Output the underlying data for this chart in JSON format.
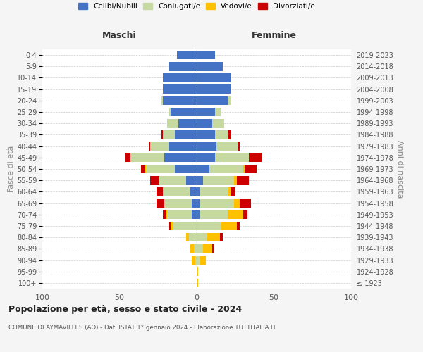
{
  "age_groups": [
    "100+",
    "95-99",
    "90-94",
    "85-89",
    "80-84",
    "75-79",
    "70-74",
    "65-69",
    "60-64",
    "55-59",
    "50-54",
    "45-49",
    "40-44",
    "35-39",
    "30-34",
    "25-29",
    "20-24",
    "15-19",
    "10-14",
    "5-9",
    "0-4"
  ],
  "birth_years": [
    "≤ 1923",
    "1924-1928",
    "1929-1933",
    "1934-1938",
    "1939-1943",
    "1944-1948",
    "1949-1953",
    "1954-1958",
    "1959-1963",
    "1964-1968",
    "1969-1973",
    "1974-1978",
    "1979-1983",
    "1984-1988",
    "1989-1993",
    "1994-1998",
    "1999-2003",
    "2004-2008",
    "2009-2013",
    "2014-2018",
    "2019-2023"
  ],
  "males": {
    "celibi": [
      0,
      0,
      0,
      0,
      0,
      0,
      3,
      3,
      4,
      7,
      14,
      21,
      18,
      14,
      12,
      17,
      22,
      22,
      22,
      18,
      13
    ],
    "coniugati": [
      0,
      0,
      1,
      2,
      5,
      15,
      16,
      18,
      18,
      17,
      19,
      22,
      12,
      8,
      7,
      1,
      1,
      0,
      0,
      0,
      0
    ],
    "vedovi": [
      0,
      0,
      2,
      2,
      2,
      2,
      1,
      0,
      0,
      0,
      1,
      0,
      0,
      0,
      0,
      0,
      0,
      0,
      0,
      0,
      0
    ],
    "divorziati": [
      0,
      0,
      0,
      0,
      0,
      1,
      2,
      5,
      4,
      6,
      2,
      3,
      1,
      1,
      0,
      0,
      0,
      0,
      0,
      0,
      0
    ]
  },
  "females": {
    "nubili": [
      0,
      0,
      0,
      0,
      0,
      0,
      2,
      2,
      2,
      4,
      8,
      12,
      13,
      12,
      10,
      12,
      20,
      22,
      22,
      17,
      12
    ],
    "coniugate": [
      0,
      0,
      2,
      4,
      7,
      16,
      18,
      22,
      18,
      20,
      22,
      22,
      14,
      8,
      8,
      4,
      2,
      0,
      0,
      0,
      0
    ],
    "vedove": [
      1,
      1,
      4,
      6,
      8,
      10,
      10,
      4,
      2,
      2,
      1,
      0,
      0,
      0,
      0,
      0,
      0,
      0,
      0,
      0,
      0
    ],
    "divorziate": [
      0,
      0,
      0,
      1,
      2,
      2,
      3,
      7,
      3,
      8,
      8,
      8,
      1,
      2,
      0,
      0,
      0,
      0,
      0,
      0,
      0
    ]
  },
  "colors": {
    "celibi": "#4472c4",
    "coniugati": "#c5d9a0",
    "vedovi": "#ffc000",
    "divorziati": "#cc0000"
  },
  "xlim": 100,
  "title": "Popolazione per età, sesso e stato civile - 2024",
  "subtitle": "COMUNE DI AYMAVILLES (AO) - Dati ISTAT 1° gennaio 2024 - Elaborazione TUTTITALIA.IT",
  "xlabel_left": "Maschi",
  "xlabel_right": "Femmine",
  "ylabel_left": "Fasce di età",
  "ylabel_right": "Anni di nascita",
  "legend_labels": [
    "Celibi/Nubili",
    "Coniugati/e",
    "Vedovi/e",
    "Divorziati/e"
  ],
  "bg_color": "#f5f5f5",
  "plot_bg_color": "#ffffff"
}
